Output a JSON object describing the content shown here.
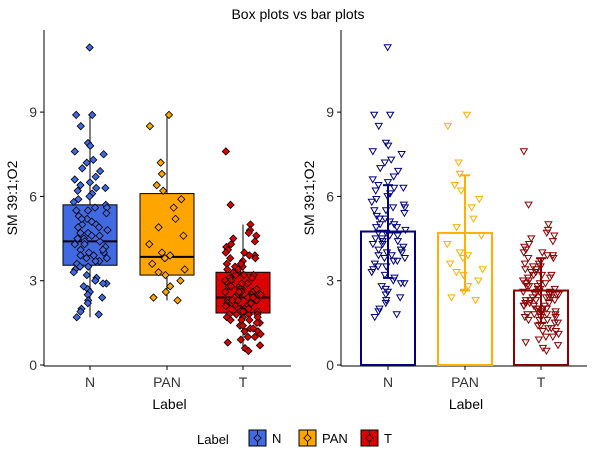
{
  "title": "Box plots vs bar plots",
  "colors": {
    "N": "#4169E1",
    "PAN": "#FFA500",
    "T": "#DD0000",
    "N_dark": "#000080",
    "PAN_dark": "#FFB000",
    "T_dark": "#8B0000"
  },
  "legend": {
    "title": "Label",
    "items": [
      {
        "key": "N",
        "label": "N"
      },
      {
        "key": "PAN",
        "label": "PAN"
      },
      {
        "key": "T",
        "label": "T"
      }
    ]
  },
  "chart_data": [
    {
      "type": "box",
      "xlabel": "Label",
      "ylabel": "SM 39:1;O2",
      "categories": [
        "N",
        "PAN",
        "T"
      ],
      "yticks": [
        0,
        3,
        6,
        9
      ],
      "ylim": [
        0,
        11.7
      ],
      "boxes": [
        {
          "category": "N",
          "whisker_low": 1.7,
          "q1": 3.55,
          "median": 4.4,
          "q3": 5.7,
          "whisker_high": 8.9,
          "outliers": [
            11.3
          ]
        },
        {
          "category": "PAN",
          "whisker_low": 2.3,
          "q1": 3.2,
          "median": 3.85,
          "q3": 6.1,
          "whisker_high": 8.9,
          "outliers": []
        },
        {
          "category": "T",
          "whisker_low": 0.5,
          "q1": 1.85,
          "median": 2.4,
          "q3": 3.3,
          "whisker_high": 5.0,
          "outliers": [
            7.6
          ]
        }
      ],
      "points": {
        "N": [
          11.3,
          8.9,
          8.9,
          8.5,
          7.9,
          7.8,
          7.6,
          7.5,
          7.3,
          7.2,
          7.0,
          6.9,
          6.7,
          6.6,
          6.5,
          6.4,
          6.3,
          6.2,
          6.1,
          6.0,
          5.9,
          5.8,
          5.7,
          5.6,
          5.5,
          5.5,
          5.4,
          5.3,
          5.2,
          5.1,
          5.0,
          5.0,
          4.9,
          4.8,
          4.7,
          4.7,
          4.6,
          4.5,
          4.5,
          4.4,
          4.4,
          4.3,
          4.3,
          4.2,
          4.1,
          4.0,
          4.0,
          3.9,
          3.9,
          3.8,
          3.7,
          3.7,
          3.6,
          3.5,
          3.5,
          3.4,
          3.3,
          3.2,
          3.1,
          3.0,
          2.9,
          2.8,
          2.7,
          2.6,
          2.5,
          2.4,
          2.3,
          2.2,
          2.0,
          1.9,
          1.8,
          1.7,
          5.2,
          4.6,
          4.1,
          3.8,
          6.3,
          2.9,
          4.9,
          5.6
        ],
        "PAN": [
          8.9,
          8.5,
          7.2,
          6.8,
          6.4,
          6.2,
          5.6,
          5.2,
          4.9,
          4.6,
          4.3,
          4.0,
          3.9,
          3.8,
          3.6,
          3.4,
          3.2,
          3.0,
          2.8,
          2.6,
          2.4,
          2.3,
          5.9,
          3.3
        ],
        "T": [
          7.6,
          5.7,
          5.0,
          4.8,
          4.7,
          4.6,
          4.5,
          4.4,
          4.3,
          4.2,
          4.1,
          4.0,
          4.0,
          3.9,
          3.8,
          3.8,
          3.7,
          3.6,
          3.5,
          3.5,
          3.4,
          3.3,
          3.3,
          3.2,
          3.2,
          3.1,
          3.0,
          3.0,
          2.9,
          2.9,
          2.8,
          2.8,
          2.7,
          2.7,
          2.6,
          2.6,
          2.6,
          2.5,
          2.5,
          2.5,
          2.4,
          2.4,
          2.4,
          2.3,
          2.3,
          2.3,
          2.2,
          2.2,
          2.2,
          2.1,
          2.1,
          2.1,
          2.0,
          2.0,
          2.0,
          1.9,
          1.9,
          1.9,
          1.8,
          1.8,
          1.8,
          1.7,
          1.7,
          1.6,
          1.6,
          1.5,
          1.5,
          1.4,
          1.4,
          1.3,
          1.3,
          1.2,
          1.2,
          1.1,
          1.0,
          1.0,
          0.9,
          0.8,
          0.7,
          0.6,
          0.5,
          2.6,
          3.1,
          2.4,
          1.9,
          3.6,
          2.7,
          2.2,
          1.7,
          3.4,
          2.9,
          2.5,
          2.0,
          1.6,
          3.9,
          2.8,
          2.3,
          3.2,
          1.8,
          2.1
        ]
      }
    },
    {
      "type": "bar",
      "xlabel": "Label",
      "ylabel": "SM 39:1;O2",
      "categories": [
        "N",
        "PAN",
        "T"
      ],
      "yticks": [
        0,
        3,
        6,
        9
      ],
      "ylim": [
        0,
        11.7
      ],
      "values": [
        4.75,
        4.7,
        2.65
      ],
      "error": [
        {
          "low": 3.1,
          "high": 6.4
        },
        {
          "low": 2.65,
          "high": 6.75
        },
        {
          "low": 1.5,
          "high": 3.8
        }
      ],
      "points_same_as_box_chart": true
    }
  ]
}
